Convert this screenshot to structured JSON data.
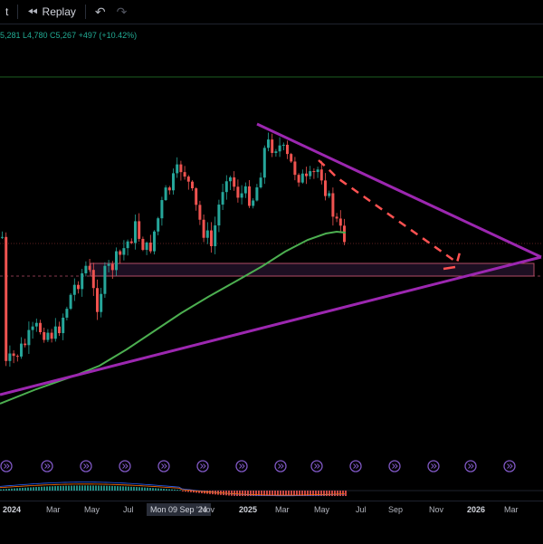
{
  "toolbar": {
    "left_fragment": "t",
    "replay_icon": "rewind-icon",
    "replay_label": "Replay",
    "undo_icon": "undo-arrow-icon",
    "redo_icon": "redo-arrow-icon"
  },
  "legend": {
    "ohlc_text": "5,281  L4,780  C5,267  +497 (+10.42%)"
  },
  "x_axis": {
    "labels": [
      "2024",
      "Mar",
      "May",
      "Jul",
      "Sep",
      "Nov",
      "2025",
      "Mar",
      "May",
      "Jul",
      "Sep",
      "Nov",
      "2026",
      "Mar"
    ],
    "crosshair_label": "Mon 09 Sep '24"
  },
  "colors": {
    "up": "#26a69a",
    "down": "#ef5350",
    "sma": "#4caf50",
    "trendline": "#9c27b0",
    "projection": "#ff5252",
    "zone_fill": "#1d0f22",
    "zone_border": "#b24c66",
    "top_line": "#1b5e20",
    "event_marker": "#7e57c2"
  },
  "chart_data": {
    "type": "candlestick",
    "title": "",
    "visible_values": {
      "open": 5281,
      "low": 4780,
      "close": 5267,
      "change": 497,
      "change_pct": 10.42
    },
    "time_axis_labels": [
      "2024",
      "Mar",
      "May",
      "Jul",
      "Sep",
      "Nov",
      "2025",
      "Mar",
      "May",
      "Jul",
      "Sep",
      "Nov",
      "2026",
      "Mar"
    ],
    "series": [
      {
        "kind": "price-candles",
        "trend": "rising from early 2024 to a peak near Jan 2025, then falling into May 2025"
      },
      {
        "kind": "moving-average",
        "color": "#4caf50"
      },
      {
        "kind": "symmetrical-triangle",
        "color": "#9c27b0"
      },
      {
        "kind": "projected-decline-path",
        "color": "#ff5252",
        "style": "dashed"
      },
      {
        "kind": "support-zone",
        "color": "#b24c66"
      }
    ],
    "lower_pane": {
      "kind": "oscillator-histogram",
      "colors": [
        "#26a69a",
        "#ef5350"
      ]
    }
  }
}
